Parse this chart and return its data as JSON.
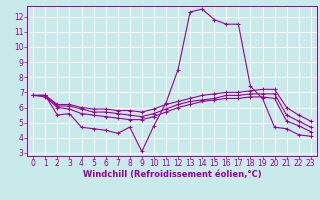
{
  "bg_color": "#c8eaea",
  "line_color": "#990099",
  "grid_color": "#ffffff",
  "spine_color": "#990099",
  "xlabel": "Windchill (Refroidissement éolien,°C)",
  "xlim": [
    -0.5,
    23.5
  ],
  "ylim": [
    2.8,
    12.7
  ],
  "xticks": [
    0,
    1,
    2,
    3,
    4,
    5,
    6,
    7,
    8,
    9,
    10,
    11,
    12,
    13,
    14,
    15,
    16,
    17,
    18,
    19,
    20,
    21,
    22,
    23
  ],
  "yticks": [
    3,
    4,
    5,
    6,
    7,
    8,
    9,
    10,
    11,
    12
  ],
  "lines": [
    {
      "x": [
        0,
        1,
        2,
        3,
        4,
        5,
        6,
        7,
        8,
        9,
        10,
        11,
        12,
        13,
        14,
        15,
        16,
        17,
        18,
        19,
        20,
        21,
        22,
        23
      ],
      "y": [
        6.8,
        6.8,
        5.5,
        5.6,
        4.7,
        4.6,
        4.5,
        4.3,
        4.7,
        3.1,
        4.8,
        6.3,
        8.5,
        12.3,
        12.5,
        11.8,
        11.5,
        11.5,
        7.4,
        6.6,
        4.7,
        4.6,
        4.2,
        4.1
      ]
    },
    {
      "x": [
        0,
        1,
        2,
        3,
        4,
        5,
        6,
        7,
        8,
        9,
        10,
        11,
        12,
        13,
        14,
        15,
        16,
        17,
        18,
        19,
        20,
        21,
        22,
        23
      ],
      "y": [
        6.8,
        6.7,
        6.0,
        5.9,
        5.6,
        5.5,
        5.4,
        5.3,
        5.2,
        5.2,
        5.4,
        5.7,
        6.0,
        6.2,
        6.4,
        6.5,
        6.6,
        6.6,
        6.7,
        6.7,
        6.6,
        5.1,
        4.8,
        4.4
      ]
    },
    {
      "x": [
        0,
        1,
        2,
        3,
        4,
        5,
        6,
        7,
        8,
        9,
        10,
        11,
        12,
        13,
        14,
        15,
        16,
        17,
        18,
        19,
        20,
        21,
        22,
        23
      ],
      "y": [
        6.8,
        6.8,
        6.1,
        6.1,
        5.9,
        5.7,
        5.7,
        5.6,
        5.5,
        5.4,
        5.6,
        5.9,
        6.2,
        6.4,
        6.5,
        6.6,
        6.8,
        6.8,
        6.9,
        6.9,
        6.9,
        5.5,
        5.1,
        4.7
      ]
    },
    {
      "x": [
        0,
        1,
        2,
        3,
        4,
        5,
        6,
        7,
        8,
        9,
        10,
        11,
        12,
        13,
        14,
        15,
        16,
        17,
        18,
        19,
        20,
        21,
        22,
        23
      ],
      "y": [
        6.8,
        6.8,
        6.2,
        6.2,
        6.0,
        5.9,
        5.9,
        5.8,
        5.8,
        5.7,
        5.9,
        6.2,
        6.4,
        6.6,
        6.8,
        6.9,
        7.0,
        7.0,
        7.1,
        7.2,
        7.2,
        6.0,
        5.5,
        5.1
      ]
    }
  ],
  "xlabel_fontsize": 6,
  "tick_fontsize": 5.5,
  "label_color": "#990099"
}
